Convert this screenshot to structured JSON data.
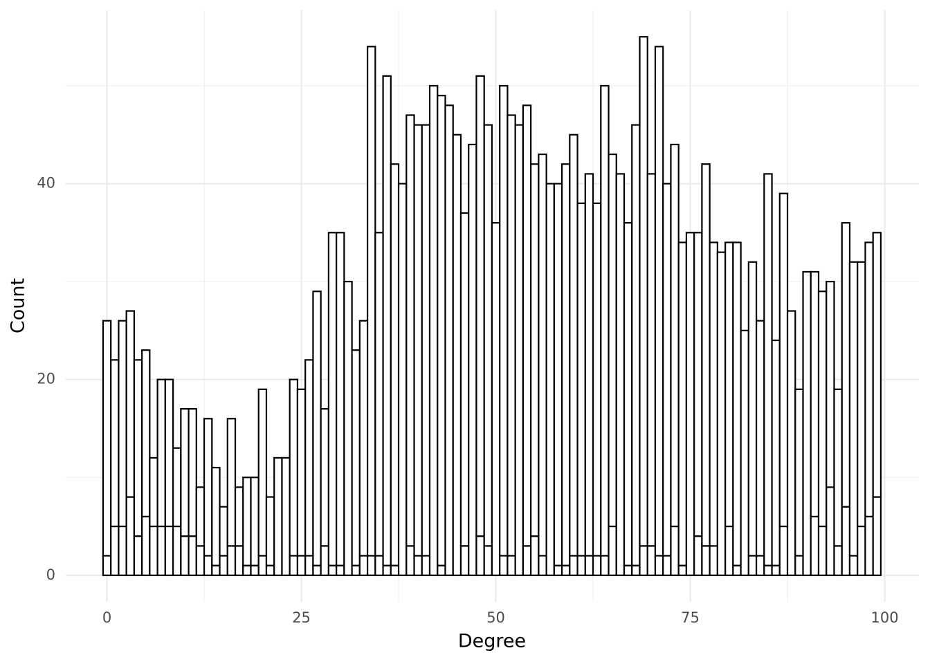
{
  "chart_data": {
    "type": "histogram",
    "x_label": "Degree",
    "y_label": "Count",
    "bins": [
      -0.5,
      0.5,
      1.5,
      2.5,
      3.5,
      4.5,
      5.5,
      6.5,
      7.5,
      8.5,
      9.5,
      10.5,
      11.5,
      12.5,
      13.5,
      14.5,
      15.5,
      16.5,
      17.5,
      18.5,
      19.5,
      20.5,
      21.5,
      22.5,
      23.5,
      24.5,
      25.5,
      26.5,
      27.5,
      28.5,
      29.5,
      30.5,
      31.5,
      32.5,
      33.5,
      34.5,
      35.5,
      36.5,
      37.5,
      38.5,
      39.5,
      40.5,
      41.5,
      42.5,
      43.5,
      44.5,
      45.5,
      46.5,
      47.5,
      48.5,
      49.5,
      50.5,
      51.5,
      52.5,
      53.5,
      54.5,
      55.5,
      56.5,
      57.5,
      58.5,
      59.5,
      60.5,
      61.5,
      62.5,
      63.5,
      64.5,
      65.5,
      66.5,
      67.5,
      68.5,
      69.5,
      70.5,
      71.5,
      72.5,
      73.5,
      74.5,
      75.5,
      76.5,
      77.5,
      78.5,
      79.5,
      80.5,
      81.5,
      82.5,
      83.5,
      84.5,
      85.5,
      86.5,
      87.5,
      88.5,
      89.5,
      90.5,
      91.5,
      92.5,
      93.5,
      94.5,
      95.5,
      96.5,
      97.5,
      98.5,
      99.5
    ],
    "series": [
      {
        "color": "#ffffff",
        "values": [
          2,
          5,
          5,
          8,
          4,
          6,
          5,
          5,
          5,
          5,
          4,
          4,
          3,
          2,
          1,
          2,
          3,
          3,
          1,
          1,
          2,
          1,
          0,
          0,
          2,
          2,
          2,
          1,
          3,
          1,
          1,
          0,
          1,
          2,
          2,
          2,
          1,
          1,
          0,
          3,
          2,
          2,
          0,
          1,
          0,
          0,
          3,
          0,
          4,
          3,
          0,
          2,
          2,
          0,
          3,
          4,
          2,
          0,
          1,
          1,
          2,
          2,
          2,
          2,
          2,
          5,
          0,
          1,
          1,
          3,
          3,
          2,
          2,
          5,
          1,
          0,
          4,
          3,
          3,
          0,
          5,
          1,
          0,
          2,
          2,
          1,
          1,
          5,
          0,
          2,
          0,
          6,
          5,
          9,
          3,
          7,
          2,
          5,
          6,
          8
        ]
      },
      {
        "color": "#ffffff",
        "values": [
          24,
          17,
          21,
          19,
          18,
          17,
          7,
          15,
          15,
          8,
          13,
          13,
          6,
          14,
          10,
          5,
          13,
          6,
          9,
          9,
          17,
          7,
          12,
          12,
          18,
          17,
          20,
          28,
          14,
          34,
          34,
          30,
          22,
          24,
          52,
          33,
          50,
          41,
          40,
          44,
          44,
          44,
          50,
          48,
          48,
          45,
          34,
          44,
          47,
          43,
          36,
          48,
          45,
          46,
          45,
          38,
          41,
          40,
          39,
          41,
          43,
          36,
          39,
          36,
          48,
          38,
          41,
          35,
          45,
          52,
          38,
          52,
          38,
          39,
          33,
          35,
          31,
          39,
          31,
          33,
          29,
          33,
          25,
          30,
          24,
          40,
          23,
          34,
          27,
          17,
          31,
          25,
          24,
          21,
          16,
          29,
          30,
          27,
          28,
          27
        ]
      }
    ],
    "edgecolor": "#000000",
    "xlim": [
      -5.3,
      104.4
    ],
    "ylim": [
      -2.7,
      57.7
    ],
    "xticks": [
      0,
      25,
      50,
      75,
      100
    ],
    "yticks": [
      0,
      20,
      40
    ],
    "minor_xticks": [
      12.5,
      37.5,
      62.5,
      87.5
    ],
    "minor_yticks": [
      10,
      30,
      50
    ],
    "grid": true
  }
}
